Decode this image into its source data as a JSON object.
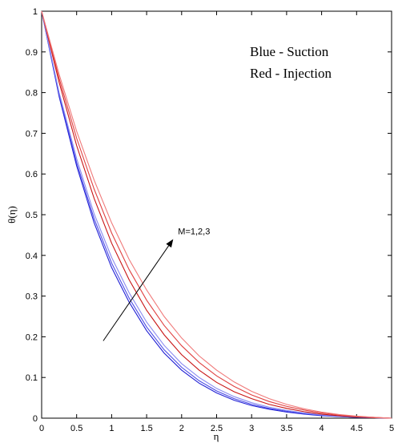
{
  "chart_data": {
    "type": "line",
    "xlabel": "η",
    "ylabel": "θ(η)",
    "xlim": [
      0,
      5
    ],
    "ylim": [
      0,
      1
    ],
    "xticks": [
      "0",
      "0.5",
      "1",
      "1.5",
      "2",
      "2.5",
      "3",
      "3.5",
      "4",
      "4.5",
      "5"
    ],
    "yticks": [
      "0",
      "0.1",
      "0.2",
      "0.3",
      "0.4",
      "0.5",
      "0.6",
      "0.7",
      "0.8",
      "0.9",
      "1"
    ],
    "grid": false,
    "legend_text": [
      "Blue - Suction",
      "Red - Injection"
    ],
    "annotation": {
      "text": "M=1,2,3",
      "arrow_from": [
        0.88,
        0.19
      ],
      "arrow_to": [
        1.88,
        0.44
      ]
    },
    "colors": {
      "blue_dark": "#1f1fd4",
      "blue_mid": "#4a4ae6",
      "blue_light": "#8a8af0",
      "red_dark": "#c81414",
      "red_mid": "#e04040",
      "red_light": "#f07a7a"
    },
    "x": [
      0,
      0.25,
      0.5,
      0.75,
      1,
      1.25,
      1.5,
      1.75,
      2,
      2.25,
      2.5,
      2.75,
      3,
      3.25,
      3.5,
      3.75,
      4,
      4.25,
      4.5,
      4.75,
      5
    ],
    "series": [
      {
        "color": "#1f1fd4",
        "values": [
          1,
          0.79,
          0.62,
          0.48,
          0.37,
          0.285,
          0.215,
          0.16,
          0.118,
          0.086,
          0.062,
          0.044,
          0.031,
          0.022,
          0.015,
          0.01,
          0.006,
          0.004,
          0.002,
          0.001,
          0
        ]
      },
      {
        "color": "#4a4ae6",
        "values": [
          1,
          0.795,
          0.628,
          0.49,
          0.381,
          0.295,
          0.224,
          0.168,
          0.125,
          0.092,
          0.067,
          0.048,
          0.034,
          0.024,
          0.017,
          0.011,
          0.007,
          0.004,
          0.002,
          0.001,
          0
        ]
      },
      {
        "color": "#8a8af0",
        "values": [
          1,
          0.8,
          0.638,
          0.502,
          0.395,
          0.308,
          0.236,
          0.179,
          0.134,
          0.1,
          0.073,
          0.053,
          0.038,
          0.027,
          0.019,
          0.013,
          0.008,
          0.005,
          0.003,
          0.001,
          0
        ]
      },
      {
        "color": "#c81414",
        "values": [
          1,
          0.825,
          0.67,
          0.54,
          0.43,
          0.34,
          0.265,
          0.205,
          0.156,
          0.118,
          0.088,
          0.065,
          0.048,
          0.034,
          0.024,
          0.016,
          0.01,
          0.006,
          0.003,
          0.001,
          0
        ]
      },
      {
        "color": "#e04040",
        "values": [
          1,
          0.835,
          0.688,
          0.563,
          0.455,
          0.365,
          0.29,
          0.228,
          0.178,
          0.137,
          0.104,
          0.078,
          0.057,
          0.041,
          0.029,
          0.02,
          0.013,
          0.008,
          0.004,
          0.002,
          0
        ]
      },
      {
        "color": "#f07a7a",
        "values": [
          1,
          0.845,
          0.705,
          0.585,
          0.48,
          0.39,
          0.315,
          0.25,
          0.197,
          0.153,
          0.118,
          0.089,
          0.066,
          0.048,
          0.034,
          0.023,
          0.015,
          0.009,
          0.005,
          0.002,
          0
        ]
      }
    ]
  }
}
